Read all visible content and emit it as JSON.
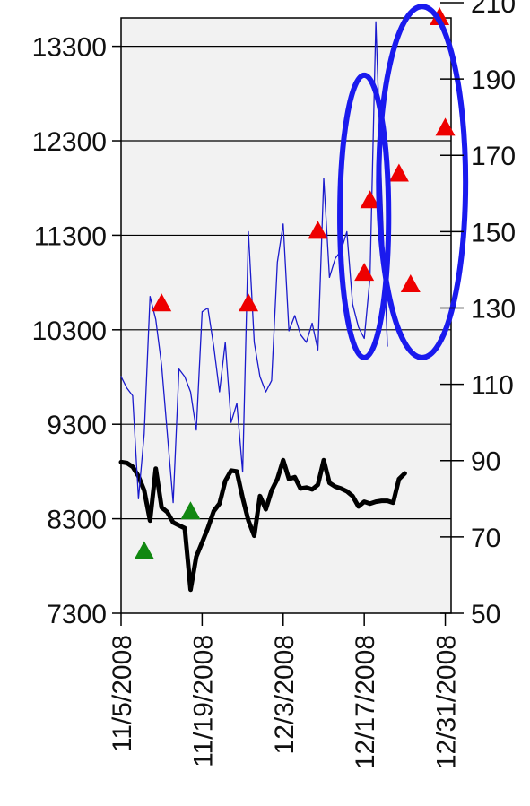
{
  "chart_data": {
    "type": "line",
    "title": "",
    "xlabel": "",
    "ylabel": "",
    "y2label": "",
    "grid": "horizontal",
    "x_ticks": [
      "11/5/2008",
      "11/19/2008",
      "12/3/2008",
      "12/17/2008",
      "12/31/2008"
    ],
    "x_tick_days": [
      0,
      14,
      28,
      42,
      56
    ],
    "xlim_days": [
      0,
      57
    ],
    "y_left": {
      "ticks": [
        7300,
        8300,
        9300,
        10300,
        11300,
        12300,
        13300
      ],
      "lim": [
        7300,
        13600
      ]
    },
    "y_right": {
      "ticks": [
        50,
        70,
        90,
        110,
        130,
        150,
        170,
        190,
        210
      ],
      "lim": [
        50,
        206
      ]
    },
    "series": [
      {
        "axis": "left",
        "color": "#000000",
        "points": [
          [
            0,
            8900
          ],
          [
            1,
            8890
          ],
          [
            2,
            8850
          ],
          [
            3,
            8750
          ],
          [
            4,
            8600
          ],
          [
            5,
            8280
          ],
          [
            6,
            8830
          ],
          [
            7,
            8420
          ],
          [
            8,
            8370
          ],
          [
            9,
            8260
          ],
          [
            10,
            8230
          ],
          [
            11,
            8200
          ],
          [
            12,
            7550
          ],
          [
            13,
            7900
          ],
          [
            14,
            8050
          ],
          [
            15,
            8200
          ],
          [
            16,
            8380
          ],
          [
            17,
            8460
          ],
          [
            18,
            8700
          ],
          [
            19,
            8810
          ],
          [
            20,
            8800
          ],
          [
            21,
            8520
          ],
          [
            22,
            8280
          ],
          [
            23,
            8120
          ],
          [
            24,
            8540
          ],
          [
            25,
            8400
          ],
          [
            26,
            8600
          ],
          [
            27,
            8720
          ],
          [
            28,
            8920
          ],
          [
            29,
            8720
          ],
          [
            30,
            8740
          ],
          [
            31,
            8620
          ],
          [
            32,
            8630
          ],
          [
            33,
            8610
          ],
          [
            34,
            8660
          ],
          [
            35,
            8920
          ],
          [
            36,
            8680
          ],
          [
            37,
            8640
          ],
          [
            38,
            8620
          ],
          [
            39,
            8590
          ],
          [
            40,
            8540
          ],
          [
            41,
            8430
          ],
          [
            42,
            8480
          ],
          [
            43,
            8460
          ],
          [
            44,
            8480
          ],
          [
            45,
            8490
          ],
          [
            46,
            8490
          ],
          [
            47,
            8470
          ],
          [
            48,
            8720
          ],
          [
            49,
            8780
          ]
        ]
      },
      {
        "axis": "right",
        "color": "#1a1acc",
        "points": [
          [
            0,
            112
          ],
          [
            1,
            109
          ],
          [
            2,
            107
          ],
          [
            3,
            80
          ],
          [
            4,
            97
          ],
          [
            5,
            133
          ],
          [
            6,
            127
          ],
          [
            7,
            115
          ],
          [
            8,
            97
          ],
          [
            9,
            79
          ],
          [
            10,
            114
          ],
          [
            11,
            112
          ],
          [
            12,
            108
          ],
          [
            13,
            98
          ],
          [
            14,
            129
          ],
          [
            15,
            130
          ],
          [
            16,
            120
          ],
          [
            17,
            108
          ],
          [
            18,
            121
          ],
          [
            19,
            100
          ],
          [
            20,
            105
          ],
          [
            21,
            87
          ],
          [
            22,
            150
          ],
          [
            23,
            121
          ],
          [
            24,
            112
          ],
          [
            25,
            108
          ],
          [
            26,
            111
          ],
          [
            27,
            142
          ],
          [
            28,
            152
          ],
          [
            29,
            124
          ],
          [
            30,
            128
          ],
          [
            31,
            123
          ],
          [
            32,
            121
          ],
          [
            33,
            126
          ],
          [
            34,
            119
          ],
          [
            35,
            164
          ],
          [
            36,
            138
          ],
          [
            37,
            143
          ],
          [
            38,
            145
          ],
          [
            39,
            150
          ],
          [
            40,
            131
          ],
          [
            41,
            125
          ],
          [
            42,
            122
          ],
          [
            43,
            138
          ],
          [
            44,
            205
          ],
          [
            45,
            161
          ],
          [
            46,
            120
          ]
        ]
      }
    ],
    "markers": [
      {
        "shape": "triangle",
        "color": "#ee0000",
        "day": 7,
        "axis": "right",
        "value": 131
      },
      {
        "shape": "triangle",
        "color": "#ee0000",
        "day": 22,
        "axis": "right",
        "value": 131
      },
      {
        "shape": "triangle",
        "color": "#ee0000",
        "day": 34,
        "axis": "right",
        "value": 150
      },
      {
        "shape": "triangle",
        "color": "#ee0000",
        "day": 42,
        "axis": "right",
        "value": 139
      },
      {
        "shape": "triangle",
        "color": "#ee0000",
        "day": 43,
        "axis": "right",
        "value": 158
      },
      {
        "shape": "triangle",
        "color": "#ee0000",
        "day": 48,
        "axis": "right",
        "value": 165
      },
      {
        "shape": "triangle",
        "color": "#ee0000",
        "day": 50,
        "axis": "right",
        "value": 136
      },
      {
        "shape": "triangle",
        "color": "#ee0000",
        "day": 55,
        "axis": "right",
        "value": 206
      },
      {
        "shape": "triangle",
        "color": "#ee0000",
        "day": 56,
        "axis": "right",
        "value": 177
      },
      {
        "shape": "triangle",
        "color": "#118811",
        "day": 4,
        "axis": "left",
        "value": 7950
      },
      {
        "shape": "triangle",
        "color": "#118811",
        "day": 12,
        "axis": "left",
        "value": 8370
      }
    ],
    "highlights": [
      {
        "shape": "ellipse",
        "color": "#1a1aee",
        "center_day": 42,
        "center_right": 154,
        "days_radius": 4.2,
        "value_radius": 37
      },
      {
        "shape": "ellipse",
        "color": "#1a1aee",
        "center_day": 52,
        "center_right": 163,
        "days_radius": 7.5,
        "value_radius": 46
      }
    ],
    "colors": {
      "plot_bg": "#f2f2f2",
      "axis": "#000000"
    }
  }
}
